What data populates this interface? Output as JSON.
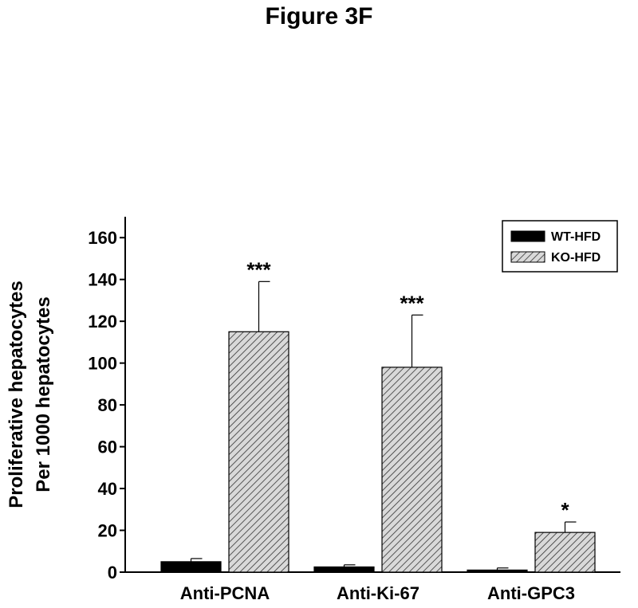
{
  "page_title": "Figure 3F",
  "chart_data": {
    "type": "bar",
    "categories": [
      "Anti-PCNA",
      "Anti-Ki-67",
      "Anti-GPC3"
    ],
    "series": [
      {
        "name": "WT-HFD",
        "values": [
          5,
          2.5,
          1
        ],
        "error": [
          1.5,
          1,
          1
        ],
        "color": "#000000",
        "pattern": "solid"
      },
      {
        "name": "KO-HFD",
        "values": [
          115,
          98,
          19
        ],
        "error": [
          24,
          25,
          5
        ],
        "color": "#d9d9d9",
        "pattern": "hatched"
      }
    ],
    "significance": [
      "***",
      "***",
      "*"
    ],
    "ylabel": [
      "Proliferative  hepatocytes",
      "Per 1000 hepatocytes"
    ],
    "xlabel": "",
    "ylim": [
      0,
      170
    ],
    "yticks": [
      0,
      20,
      40,
      60,
      80,
      100,
      120,
      140,
      160
    ],
    "legend_position": "top-right",
    "grid": false
  }
}
